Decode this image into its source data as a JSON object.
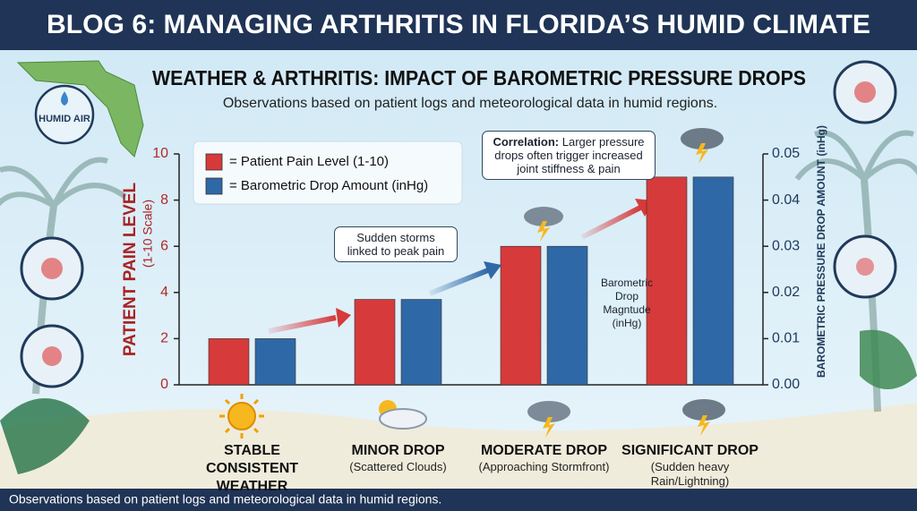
{
  "header": {
    "title": "BLOG 6: MANAGING ARTHRITIS IN FLORIDA’S HUMID CLIMATE"
  },
  "badge": "HUMID AIR",
  "chart_data": {
    "type": "bar",
    "title": "WEATHER & ARTHRITIS: IMPACT OF BAROMETRIC PRESSURE DROPS",
    "subtitle": "Observations based on patient logs and meteorological data in humid regions.",
    "ylabel": "PATIENT PAIN LEVEL",
    "ylabel_note": "(1-10 Scale)",
    "y2label": "BAROMETRIC PRESSURE DROP AMOUNT (inHg)",
    "categories": [
      "STABLE CONSISTENT WEATHER",
      "MINOR DROP",
      "MODERATE DROP",
      "SIGNIFICANT DROP"
    ],
    "category_notes": [
      null,
      "(Scattered Clouds)",
      "(Approaching Stormfront)",
      "(Sudden heavy Rain/Lightning)"
    ],
    "series": [
      {
        "name": "= Patient Pain Level (1-10)",
        "color": "#d63a3a",
        "values": [
          2,
          3.7,
          6,
          9
        ]
      },
      {
        "name": "= Barometric Drop Amount (inHg)",
        "color": "#2f68a6",
        "axis": "y2",
        "values": [
          0.01,
          0.0185,
          0.03,
          0.045
        ]
      }
    ],
    "ylim": [
      0,
      10
    ],
    "yticks": [
      0,
      2,
      4,
      6,
      8,
      10
    ],
    "y2lim": [
      0,
      0.05
    ],
    "y2ticks": [
      {
        "value": 0,
        "label": "0.00"
      },
      0.01,
      0.02,
      0.03,
      0.04,
      0.05
    ],
    "grid": false,
    "legend": "upper left",
    "annotations": {
      "correlation_label": "Correlation:",
      "correlation": "Larger pressure drops often trigger increased joint stiffness & pain",
      "storms": "Sudden storms linked to peak pain",
      "magnitude": "Barometric Drop Magntude (inHg)"
    }
  },
  "footer": "Observations based on patient logs and meteorological data in humid regions."
}
